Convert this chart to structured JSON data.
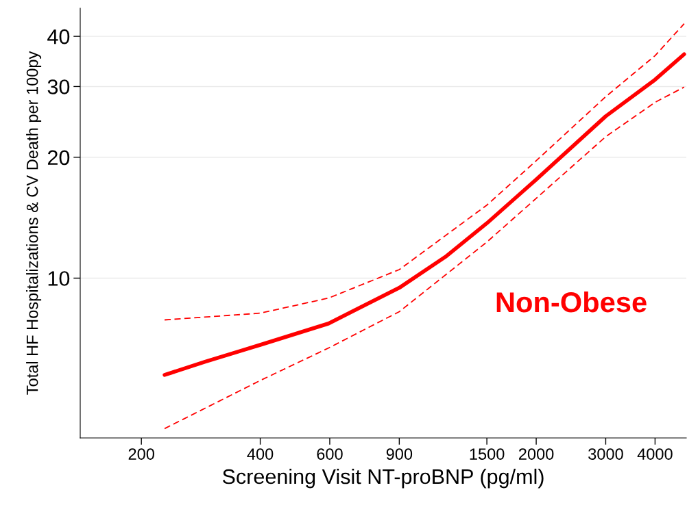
{
  "chart_data": {
    "type": "line",
    "xlabel": "Screening Visit NT-proBNP (pg/ml)",
    "ylabel": "Total HF Hospitalizations & CV Death per 100py",
    "log": "xy",
    "xlim": [
      140,
      4800
    ],
    "ylim": [
      4,
      47
    ],
    "xticks": [
      200,
      400,
      600,
      900,
      1500,
      2000,
      3000,
      4000
    ],
    "yticks": [
      10,
      20,
      30,
      40
    ],
    "grid": "y",
    "annotations": [
      "Non-Obese"
    ],
    "series": [
      {
        "color": "#ff0000",
        "line_style": "solid",
        "x": [
          229,
          290,
          400,
          596,
          900,
          1178,
          1500,
          2000,
          3000,
          4000,
          4740
        ],
        "values": [
          5.74,
          6.19,
          6.82,
          7.71,
          9.46,
          11.3,
          13.7,
          17.6,
          25.3,
          31.2,
          36.1
        ]
      },
      {
        "color": "#ff0000",
        "line_style": "dashed",
        "x": [
          229,
          400,
          596,
          900,
          1500,
          2000,
          3000,
          4000,
          4740
        ],
        "values": [
          7.87,
          8.18,
          8.92,
          10.5,
          15.2,
          19.6,
          28.3,
          35.8,
          43.0
        ]
      },
      {
        "color": "#ff0000",
        "line_style": "dashed",
        "x": [
          229,
          400,
          596,
          900,
          1500,
          2000,
          3000,
          4000,
          4740
        ],
        "values": [
          4.22,
          5.56,
          6.7,
          8.25,
          12.3,
          15.8,
          22.5,
          27.4,
          29.9
        ]
      }
    ]
  }
}
